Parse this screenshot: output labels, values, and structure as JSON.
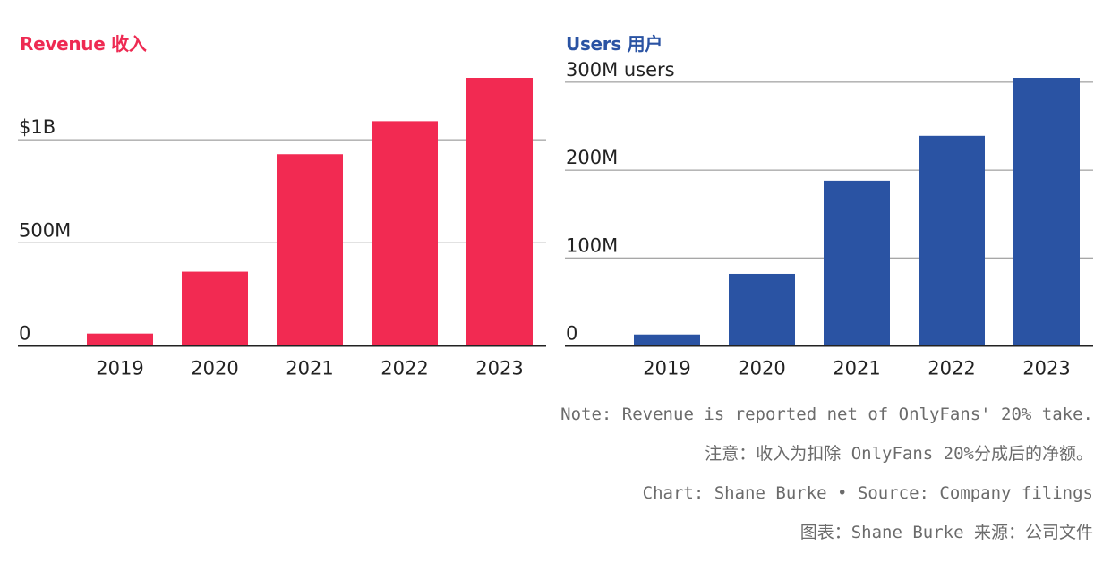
{
  "chart_data": [
    {
      "type": "bar",
      "title": "Revenue 收入",
      "categories": [
        "2019",
        "2020",
        "2021",
        "2022",
        "2023"
      ],
      "values": [
        60,
        360,
        930,
        1090,
        1300
      ],
      "ylim": [
        0,
        1300
      ],
      "yticks": [
        {
          "value": 0,
          "label": "0"
        },
        {
          "value": 500,
          "label": "500M"
        },
        {
          "value": 1000,
          "label": "$1B"
        }
      ],
      "color": "#f22a52",
      "title_color": "#ee2a52",
      "grid": true
    },
    {
      "type": "bar",
      "title": "Users 用户",
      "categories": [
        "2019",
        "2020",
        "2021",
        "2022",
        "2023"
      ],
      "values": [
        13,
        82,
        188,
        239,
        305
      ],
      "ylim": [
        0,
        305
      ],
      "yticks": [
        {
          "value": 0,
          "label": "0"
        },
        {
          "value": 100,
          "label": "100M"
        },
        {
          "value": 200,
          "label": "200M"
        },
        {
          "value": 300,
          "label": "300M users"
        }
      ],
      "color": "#2a53a3",
      "title_color": "#2a53a3",
      "grid": true
    }
  ],
  "notes": [
    "Note: Revenue is reported net of OnlyFans' 20% take.",
    "注意：收入为扣除 OnlyFans 20%分成后的净额。",
    "Chart: Shane Burke • Source: Company filings",
    "图表：Shane Burke 来源：公司文件"
  ]
}
